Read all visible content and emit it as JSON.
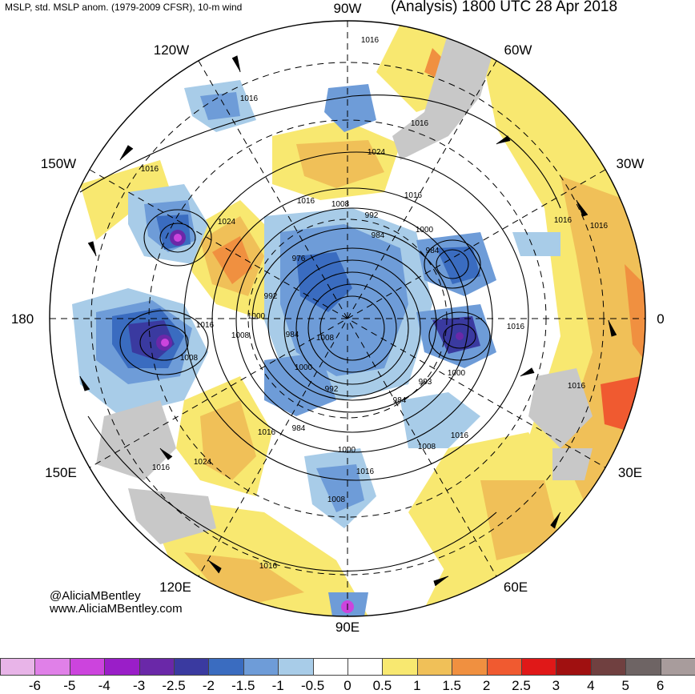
{
  "header": {
    "left_title": "MSLP, std. MSLP anom. (1979-2009 CFSR), 10-m wind",
    "right_title": "(Analysis) 1800 UTC 28 Apr 2018"
  },
  "credits": {
    "handle": "@AliciaMBentley",
    "website": "www.AliciaMBentley.com"
  },
  "longitude_labels": {
    "top": "90W",
    "top_right": "60W",
    "right_upper": "30W",
    "right": "0",
    "right_lower": "30E",
    "bottom_right": "60E",
    "bottom": "90E",
    "bottom_left": "120E",
    "left_lower": "150E",
    "left": "180",
    "left_upper": "150W",
    "top_left": "120W"
  },
  "isobar_labels": {
    "l1016_top": "1016",
    "l1016_a": "1016",
    "l1016_b": "1016",
    "l1024_top": "1024",
    "l1016_c": "1016",
    "l1016_d": "1016",
    "l1008_a": "1008",
    "l992_a": "992",
    "l984_a": "984",
    "l1000_a": "1000",
    "l984_b": "984",
    "l976": "976",
    "l1024_left": "1024",
    "l1016_e": "1016",
    "l1016_f": "1016",
    "l1016_g": "1016",
    "l992_b": "992",
    "l1000_b": "1000",
    "l1016_h": "1016",
    "l1008_b": "1008",
    "l1008_c": "1008",
    "l984_c": "984",
    "l1008_d": "1008",
    "l1000_c": "1000",
    "l992_c": "992",
    "l993": "993",
    "l1000_d": "1000",
    "l984_d": "984",
    "l1016_i": "1016",
    "l1016_j": "1016",
    "l984_e": "984",
    "l1008_e": "1008",
    "l1016_k": "1016",
    "l1024_b": "1024",
    "l1016_l": "1016",
    "l1000_e": "1000",
    "l1016_m": "1016",
    "l1008_f": "1008",
    "l1016_n": "1016",
    "l1016_o": "1016"
  },
  "colorbar": {
    "ticks": [
      "-6",
      "-5",
      "-4",
      "-3",
      "-2.5",
      "-2",
      "-1.5",
      "-1",
      "-0.5",
      "0",
      "0.5",
      "1",
      "1.5",
      "2",
      "2.5",
      "3",
      "4",
      "5",
      "6"
    ],
    "colors": [
      "#e8b4e8",
      "#e080e8",
      "#cc44dd",
      "#9a1ec8",
      "#6a28a8",
      "#3a3aa0",
      "#3a6cc0",
      "#6e9cd8",
      "#a8cce8",
      "#ffffff",
      "#ffffff",
      "#f8e870",
      "#f0c058",
      "#f09040",
      "#f05a30",
      "#e01818",
      "#a01010",
      "#704040",
      "#6e6464",
      "#a89c9c"
    ]
  }
}
